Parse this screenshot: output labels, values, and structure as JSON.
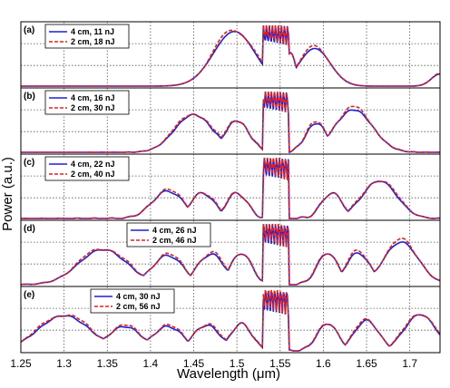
{
  "chart_data": {
    "type": "line",
    "xlabel": "Wavelength (μm)",
    "ylabel": "Power (a.u.)",
    "xlim": [
      1.25,
      1.735
    ],
    "x_ticks": [
      "1.25",
      "1.3",
      "1.35",
      "1.4",
      "1.45",
      "1.5",
      "1.55",
      "1.6",
      "1.65",
      "1.7"
    ],
    "grid": true,
    "series_colors": {
      "4 cm": "#1f1fd6",
      "2 cm": "#e02020"
    },
    "panels": [
      {
        "label": "(a)",
        "legend_placement": "top-left",
        "series": [
          {
            "name": "4 cm, 11 nJ",
            "style": "solid"
          },
          {
            "name": "2 cm, 18 nJ",
            "style": "dashed"
          }
        ]
      },
      {
        "label": "(b)",
        "legend_placement": "top-left",
        "series": [
          {
            "name": "4 cm, 16 nJ",
            "style": "solid"
          },
          {
            "name": "2 cm, 30 nJ",
            "style": "dashed"
          }
        ]
      },
      {
        "label": "(c)",
        "legend_placement": "top-left",
        "series": [
          {
            "name": "4 cm, 22 nJ",
            "style": "solid"
          },
          {
            "name": "2 cm, 40 nJ",
            "style": "dashed"
          }
        ]
      },
      {
        "label": "(d)",
        "legend_placement": "top-center",
        "series": [
          {
            "name": "4 cm, 26 nJ",
            "style": "solid"
          },
          {
            "name": "2 cm, 46 nJ",
            "style": "dashed"
          }
        ]
      },
      {
        "label": "(e)",
        "legend_placement": "top-center",
        "series": [
          {
            "name": "4 cm, 30 nJ",
            "style": "solid"
          },
          {
            "name": "2 cm, 56 nJ",
            "style": "dashed"
          }
        ]
      }
    ]
  }
}
